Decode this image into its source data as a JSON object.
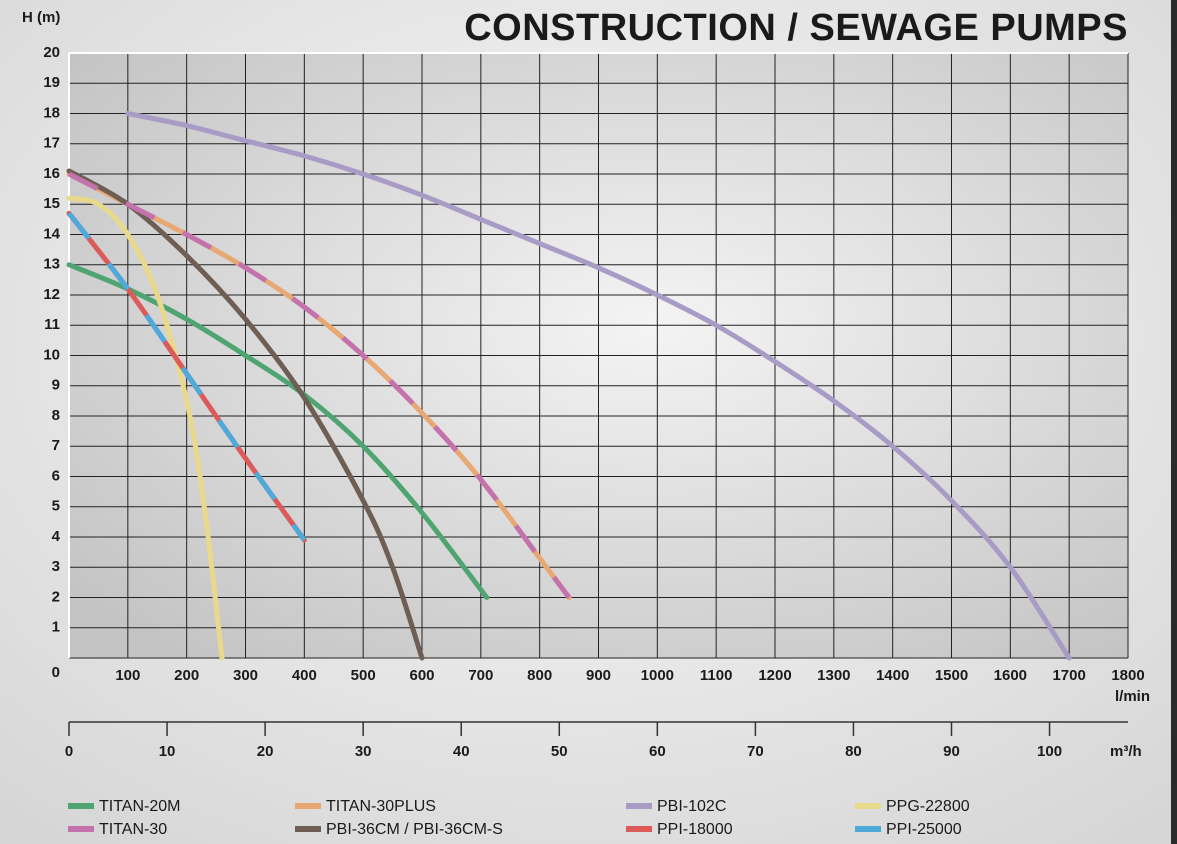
{
  "chart_data": {
    "type": "line",
    "title": "CONSTRUCTION / SEWAGE PUMPS",
    "y_label": "H (m)",
    "x_label": "l/min",
    "x2_label": "m³/h",
    "xlim": [
      0,
      1800
    ],
    "xticks": [
      100,
      200,
      300,
      400,
      500,
      600,
      700,
      800,
      900,
      1000,
      1100,
      1200,
      1300,
      1400,
      1500,
      1600,
      1700,
      1800
    ],
    "ylim": [
      0,
      20
    ],
    "yticks": [
      0,
      1,
      2,
      3,
      4,
      5,
      6,
      7,
      8,
      9,
      10,
      11,
      12,
      13,
      14,
      15,
      16,
      17,
      18,
      19,
      20
    ],
    "x2lim": [
      0,
      108
    ],
    "x2ticks": [
      0,
      10,
      20,
      30,
      40,
      50,
      60,
      70,
      80,
      90,
      100
    ],
    "grid": true,
    "legend": "bottom",
    "series": [
      {
        "name": "TITAN-20M",
        "color": "#4fa572",
        "x": [
          0,
          100,
          200,
          300,
          400,
          500,
          600,
          710
        ],
        "values": [
          13,
          12.2,
          11.2,
          10,
          8.7,
          7,
          4.8,
          2
        ]
      },
      {
        "name": "TITAN-30PLUS",
        "color": "#e8a874",
        "x": [
          0,
          100,
          200,
          300,
          400,
          500,
          600,
          700,
          800,
          850
        ],
        "values": [
          16,
          15,
          14,
          12.9,
          11.6,
          10,
          8.1,
          5.9,
          3.3,
          2
        ]
      },
      {
        "name": "PBI-102C",
        "color": "#a89cc6",
        "x": [
          100,
          200,
          300,
          400,
          500,
          600,
          700,
          800,
          900,
          1000,
          1100,
          1200,
          1300,
          1400,
          1500,
          1600,
          1700
        ],
        "values": [
          18,
          17.6,
          17.1,
          16.6,
          16,
          15.3,
          14.5,
          13.7,
          12.9,
          12,
          11,
          9.8,
          8.5,
          7,
          5.2,
          3,
          0
        ]
      },
      {
        "name": "PPG-22800",
        "color": "#e9d98a",
        "x": [
          0,
          50,
          100,
          150,
          200,
          230,
          260
        ],
        "values": [
          15.2,
          15,
          14,
          12,
          8.5,
          5,
          0
        ]
      },
      {
        "name": "TITAN-30",
        "color": "#c472ad",
        "dashed": true,
        "x": [
          0,
          100,
          200,
          300,
          400,
          500,
          600,
          700,
          800,
          850
        ],
        "values": [
          16,
          15,
          14,
          12.9,
          11.6,
          10,
          8.1,
          5.9,
          3.3,
          2
        ]
      },
      {
        "name": "PBI-36CM / PBI-36CM-S",
        "color": "#6e5e54",
        "x": [
          0,
          100,
          200,
          300,
          400,
          500,
          550,
          600
        ],
        "values": [
          16.1,
          15,
          13.3,
          11.2,
          8.6,
          5.2,
          3,
          0
        ]
      },
      {
        "name": "PPI-18000",
        "color": "#dc5a5a",
        "x": [
          0,
          100,
          200,
          300,
          400
        ],
        "values": [
          14.7,
          12.2,
          9.4,
          6.6,
          3.9
        ]
      },
      {
        "name": "PPI-25000",
        "color": "#4fa9db",
        "dashed": true,
        "x": [
          0,
          100,
          200,
          300,
          400
        ],
        "values": [
          14.7,
          12.2,
          9.4,
          6.6,
          3.9
        ]
      }
    ]
  }
}
